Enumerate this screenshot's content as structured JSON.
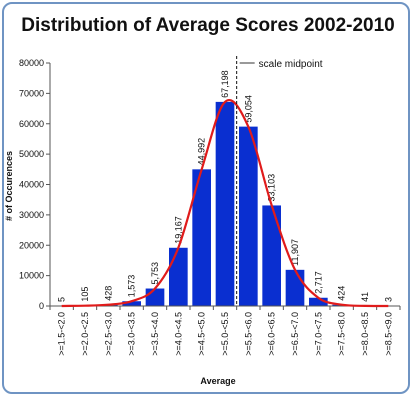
{
  "chart_data": {
    "type": "bar",
    "title": "Distribution of Average Scores 2002-2010",
    "xlabel": "Average",
    "ylabel": "# of Occurences",
    "ylim": [
      0,
      80000
    ],
    "yticks": [
      "0",
      "10000",
      "20000",
      "30000",
      "40000",
      "50000",
      "60000",
      "70000",
      "80000"
    ],
    "categories": [
      ">=1.5-<2.0",
      ">=2.0-<2.5",
      ">=2.5-<3.0",
      ">=3.0-<3.5",
      ">=3.5-<4.0",
      ">=4.0-<4.5",
      ">=4.5-<5.0",
      ">=5.0-<5.5",
      ">=5.5-<6.0",
      ">=6.0-<6.5",
      ">=6.5-<7.0",
      ">=7.0-<7.5",
      ">=7.5-<8.0",
      ">=8.0-<8.5",
      ">=8.5-<9.0"
    ],
    "values": [
      5,
      105,
      428,
      1573,
      5753,
      19167,
      44992,
      67198,
      59054,
      33103,
      11907,
      2717,
      424,
      41,
      3
    ],
    "data_labels": [
      "5",
      "105",
      "428",
      "1,573",
      "5,753",
      "19,167",
      "44,992",
      "67,198",
      "59,054",
      "33,103",
      "11,907",
      "2,717",
      "424",
      "41",
      "3"
    ],
    "bar_color": "#0a2fd0",
    "curve_color": "#e01b1b",
    "curve_description": "fitted normal curve",
    "midpoint_annotation": "scale midpoint",
    "midpoint_value": 5.5,
    "grid": false,
    "legend": "none"
  }
}
